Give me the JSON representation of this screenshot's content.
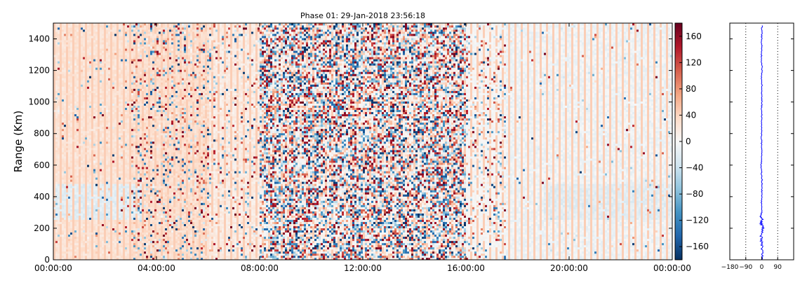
{
  "chart_data": [
    {
      "type": "heatmap",
      "title": "Phase 01: 29-Jan-2018 23:56:18",
      "xlabel": "",
      "ylabel": "Range (Km)",
      "x_tick_labels": [
        "00:00:00",
        "04:00:00",
        "08:00:00",
        "12:00:00",
        "16:00:00",
        "20:00:00",
        "00:00:00"
      ],
      "y_tick_labels": [
        "0",
        "200",
        "400",
        "600",
        "800",
        "1000",
        "1200",
        "1400"
      ],
      "ylim": [
        0,
        1500
      ],
      "colorbar": {
        "colormap": "RdBu_r",
        "range": [
          -180,
          180
        ],
        "tick_labels": [
          "−160",
          "−120",
          "−80",
          "−40",
          "0",
          "40",
          "80",
          "120",
          "160"
        ],
        "colors": [
          "#053061",
          "#2166ac",
          "#4393c3",
          "#92c5de",
          "#d1e5f0",
          "#f7f7f7",
          "#fddbc7",
          "#f4a582",
          "#d6604d",
          "#b2182b",
          "#67001f"
        ]
      },
      "description_regions": [
        {
          "time_from": "00:00",
          "time_to": "03:00",
          "level": "light positive phase (~20-40)"
        },
        {
          "time_from": "03:00",
          "time_to": "06:00",
          "level": "noisy, mixed"
        },
        {
          "time_from": "08:00",
          "time_to": "16:00",
          "level": "highly noisy, full-range phases"
        },
        {
          "time_from": "17:00",
          "time_to": "24:00",
          "level": "near zero, faint blue"
        }
      ]
    },
    {
      "type": "line",
      "title": "",
      "xlabel": "",
      "ylabel": "",
      "x_tick_labels": [
        "−180",
        "−90",
        "0",
        "90"
      ],
      "xlim": [
        -180,
        180
      ],
      "ylim": [
        0,
        1500
      ],
      "dotted_reference_lines_x": [
        -90,
        90
      ],
      "series_color": "#0000ff",
      "profile": [
        [
          0,
          0
        ],
        [
          50,
          3
        ],
        [
          100,
          0
        ],
        [
          150,
          -4
        ],
        [
          200,
          8
        ],
        [
          230,
          -3
        ],
        [
          260,
          2
        ],
        [
          275,
          -8
        ],
        [
          300,
          0
        ],
        [
          350,
          -2
        ],
        [
          400,
          1
        ],
        [
          450,
          0
        ],
        [
          500,
          2
        ],
        [
          550,
          -1
        ],
        [
          600,
          -3
        ],
        [
          650,
          0
        ],
        [
          700,
          2
        ],
        [
          750,
          -2
        ],
        [
          800,
          0
        ],
        [
          850,
          -2
        ],
        [
          900,
          0
        ],
        [
          950,
          -1
        ],
        [
          1000,
          1
        ],
        [
          1050,
          -2
        ],
        [
          1100,
          1
        ],
        [
          1150,
          -1
        ],
        [
          1200,
          2
        ],
        [
          1250,
          0
        ],
        [
          1300,
          -2
        ],
        [
          1350,
          1
        ],
        [
          1400,
          -1
        ],
        [
          1450,
          2
        ],
        [
          1490,
          0
        ]
      ]
    }
  ]
}
